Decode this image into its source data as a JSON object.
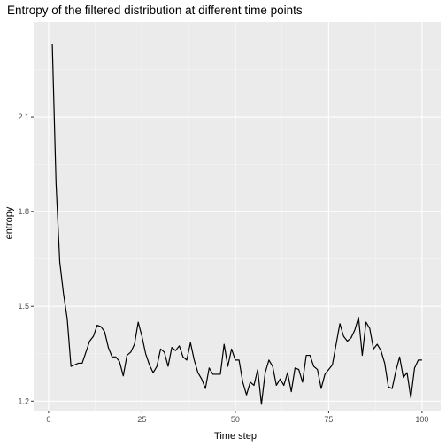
{
  "chart_data": {
    "type": "line",
    "title": "Entropy of the filtered distribution at different time points",
    "xlabel": "Time step",
    "ylabel": "entropy",
    "xlim": [
      -4,
      105
    ],
    "ylim": [
      1.17,
      2.4
    ],
    "x_ticks": [
      0,
      25,
      50,
      75,
      100
    ],
    "y_ticks": [
      1.2,
      1.5,
      1.8,
      2.1
    ],
    "x_tick_labels": [
      "0",
      "25",
      "50",
      "75",
      "100"
    ],
    "y_tick_labels": [
      "1.2",
      "1.5",
      "1.8",
      "2.1"
    ],
    "grid": true,
    "background": "#ebebeb",
    "line_color": "#000000",
    "series": [
      {
        "x": [
          1,
          2,
          3,
          4,
          5,
          6,
          7,
          8,
          9,
          10,
          11,
          12,
          13,
          14,
          15,
          16,
          17,
          18,
          19,
          20,
          21,
          22,
          23,
          24,
          25,
          26,
          27,
          28,
          29,
          30,
          31,
          32,
          33,
          34,
          35,
          36,
          37,
          38,
          39,
          40,
          41,
          42,
          43,
          44,
          45,
          46,
          47,
          48,
          49,
          50,
          51,
          52,
          53,
          54,
          55,
          56,
          57,
          58,
          59,
          60,
          61,
          62,
          63,
          64,
          65,
          66,
          67,
          68,
          69,
          70,
          71,
          72,
          73,
          74,
          75,
          76,
          77,
          78,
          79,
          80,
          81,
          82,
          83,
          84,
          85,
          86,
          87,
          88,
          89,
          90,
          91,
          92,
          93,
          94,
          95,
          96,
          97,
          98,
          99,
          100
        ],
        "values": [
          2.33,
          1.89,
          1.64,
          1.54,
          1.46,
          1.31,
          1.315,
          1.32,
          1.32,
          1.355,
          1.39,
          1.405,
          1.44,
          1.436,
          1.42,
          1.37,
          1.34,
          1.34,
          1.325,
          1.28,
          1.345,
          1.355,
          1.38,
          1.45,
          1.405,
          1.35,
          1.315,
          1.29,
          1.31,
          1.365,
          1.355,
          1.31,
          1.37,
          1.36,
          1.375,
          1.34,
          1.33,
          1.385,
          1.33,
          1.29,
          1.27,
          1.24,
          1.305,
          1.285,
          1.285,
          1.285,
          1.38,
          1.31,
          1.365,
          1.33,
          1.33,
          1.26,
          1.22,
          1.26,
          1.25,
          1.3,
          1.19,
          1.29,
          1.33,
          1.31,
          1.25,
          1.27,
          1.25,
          1.29,
          1.23,
          1.305,
          1.3,
          1.26,
          1.345,
          1.345,
          1.31,
          1.3,
          1.24,
          1.285,
          1.3,
          1.315,
          1.38,
          1.445,
          1.405,
          1.39,
          1.4,
          1.425,
          1.465,
          1.345,
          1.45,
          1.43,
          1.365,
          1.38,
          1.36,
          1.32,
          1.245,
          1.24,
          1.295,
          1.34,
          1.275,
          1.29,
          1.21,
          1.305,
          1.33,
          1.33
        ]
      }
    ]
  }
}
